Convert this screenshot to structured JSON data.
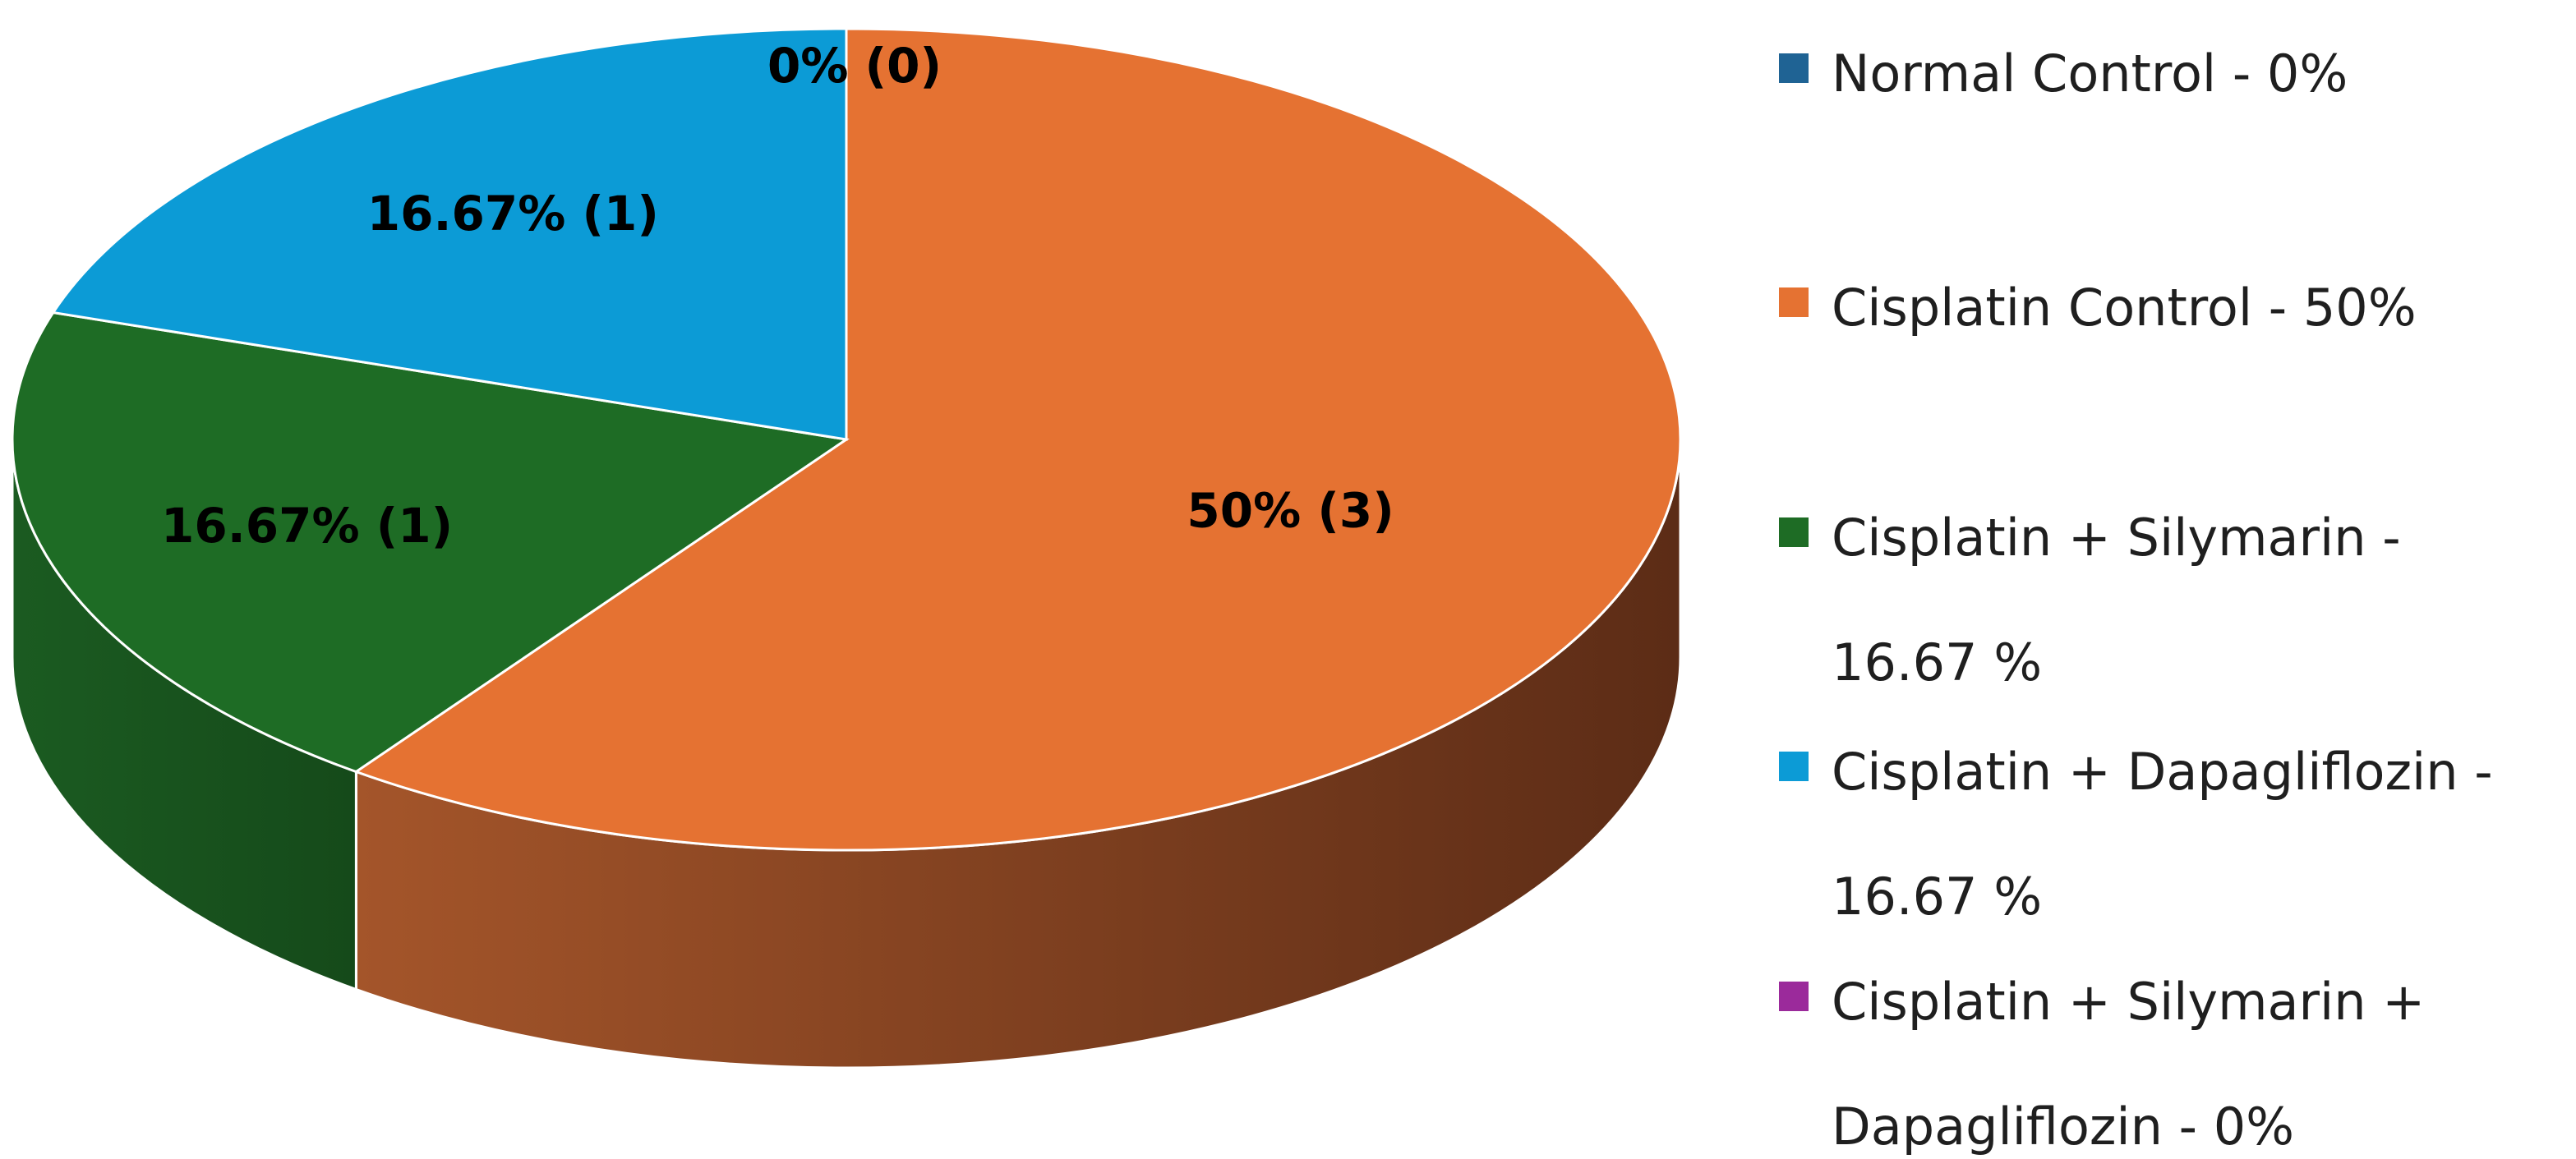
{
  "chart_data": {
    "type": "pie",
    "style": "3d",
    "legend_position": "right",
    "series": [
      {
        "name": "Normal Control",
        "value": 0,
        "percent_label": "0% (0)",
        "legend": [
          "Normal Control - 0%"
        ],
        "color": "#1F6394"
      },
      {
        "name": "Cisplatin Control",
        "value": 3,
        "percent_label": "50% (3)",
        "legend": [
          "Cisplatin Control - 50%"
        ],
        "color": "#E57232"
      },
      {
        "name": "Cisplatin + Silymarin",
        "value": 1,
        "percent_label": "16.67% (1)",
        "legend": [
          "Cisplatin + Silymarin -",
          "16.67 %"
        ],
        "color": "#1E6C25"
      },
      {
        "name": "Cisplatin + Dapagliflozin",
        "value": 1,
        "percent_label": "16.67% (1)",
        "legend": [
          "Cisplatin + Dapagliflozin -",
          "16.67 %"
        ],
        "color": "#0C9BD6"
      },
      {
        "name": "Cisplatin + Silymarin + Dapagliflozin",
        "value": 0,
        "percent_label": "0% (0)",
        "legend": [
          "Cisplatin + Silymarin +",
          "Dapagliflozin - 0%"
        ],
        "color": "#9B2A9B"
      }
    ]
  }
}
